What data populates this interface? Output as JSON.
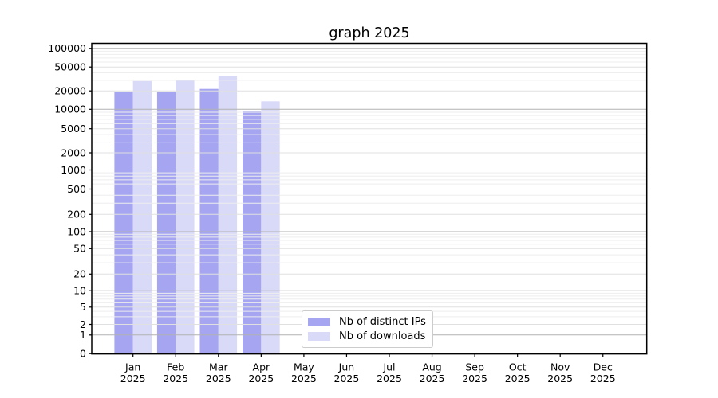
{
  "chart_data": {
    "type": "bar",
    "title": "graph 2025",
    "categories": [
      {
        "month": "Jan",
        "year": "2025"
      },
      {
        "month": "Feb",
        "year": "2025"
      },
      {
        "month": "Mar",
        "year": "2025"
      },
      {
        "month": "Apr",
        "year": "2025"
      },
      {
        "month": "May",
        "year": "2025"
      },
      {
        "month": "Jun",
        "year": "2025"
      },
      {
        "month": "Jul",
        "year": "2025"
      },
      {
        "month": "Aug",
        "year": "2025"
      },
      {
        "month": "Sep",
        "year": "2025"
      },
      {
        "month": "Oct",
        "year": "2025"
      },
      {
        "month": "Nov",
        "year": "2025"
      },
      {
        "month": "Dec",
        "year": "2025"
      }
    ],
    "series": [
      {
        "name": "Nb of distinct IPs",
        "color": "#a5a5f2",
        "values": [
          19000,
          19200,
          21600,
          9400,
          0,
          0,
          0,
          0,
          0,
          0,
          0,
          0
        ]
      },
      {
        "name": "Nb of downloads",
        "color": "#d9d9f8",
        "values": [
          29200,
          30500,
          35000,
          13500,
          0,
          0,
          0,
          0,
          0,
          0,
          0,
          0
        ]
      }
    ],
    "yaxis": {
      "scale": "symlog",
      "ticks": [
        0,
        1,
        2,
        5,
        10,
        20,
        50,
        100,
        200,
        500,
        1000,
        2000,
        5000,
        10000,
        20000,
        50000,
        100000
      ],
      "range": [
        0,
        120000
      ]
    },
    "xlabel": "",
    "ylabel": "",
    "grid": true,
    "legend_position": "lower center"
  }
}
